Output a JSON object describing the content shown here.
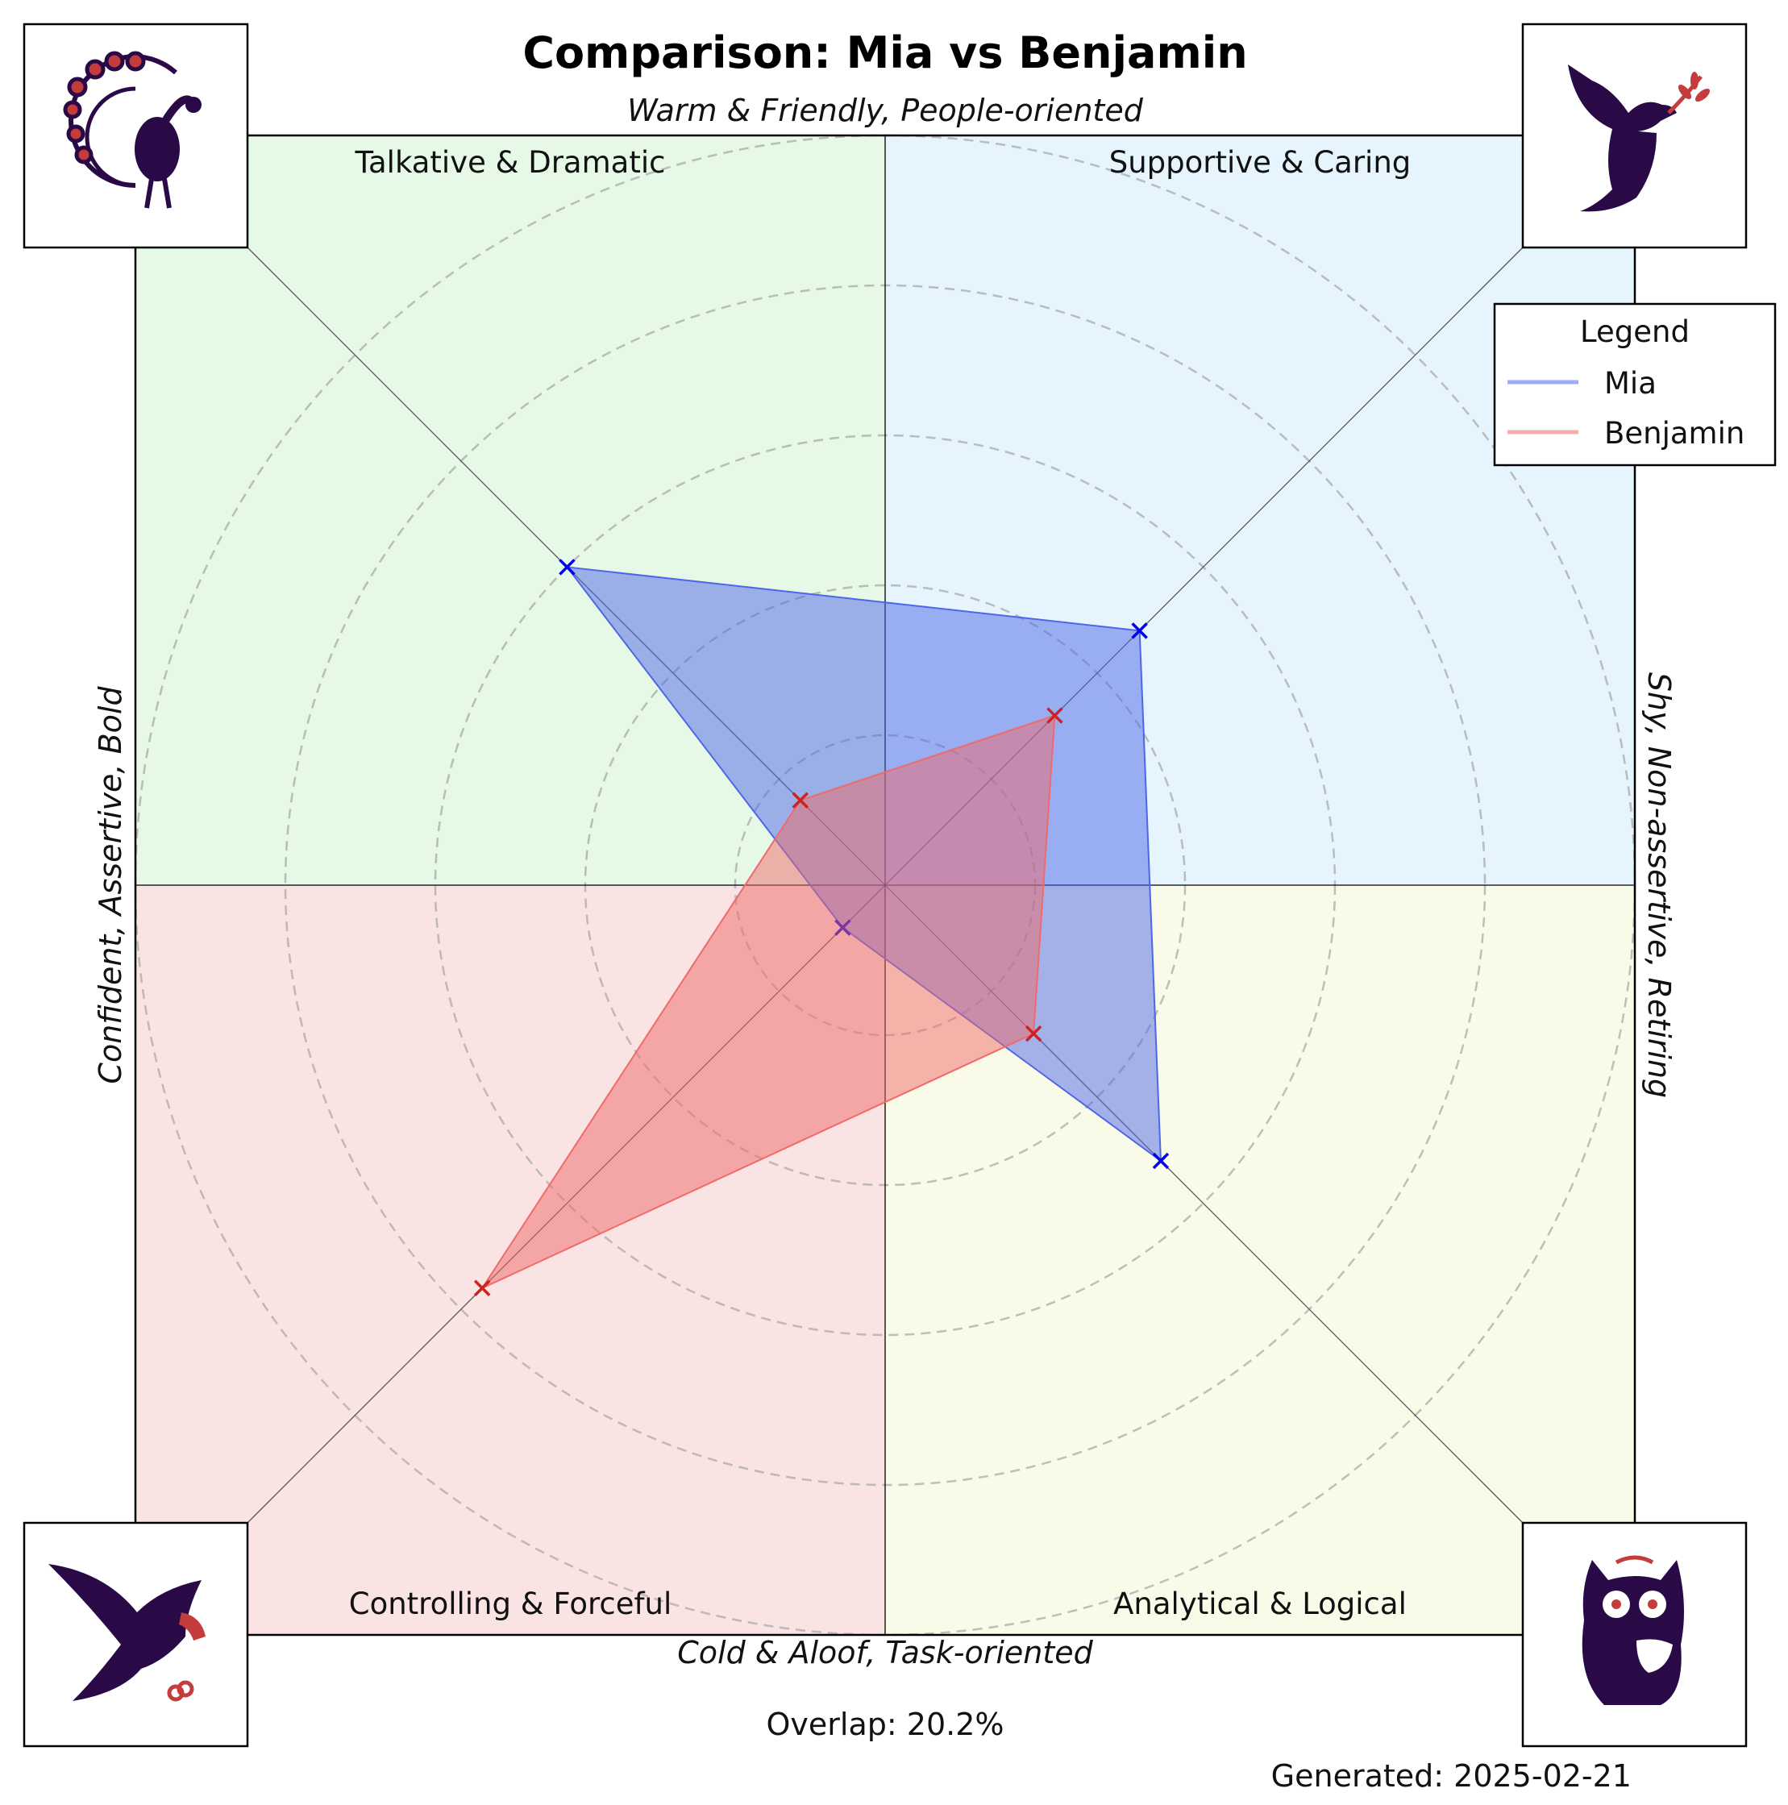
{
  "chart_data": {
    "type": "radar",
    "title": "Comparison: Mia vs Benjamin",
    "axis_labels": {
      "top": "Warm & Friendly, People-oriented",
      "bottom": "Cold & Aloof, Task-oriented",
      "left": "Confident, Assertive, Bold",
      "right": "Shy, Non-assertive, Retiring"
    },
    "quadrants": [
      {
        "name": "Talkative & Dramatic",
        "position": "top-left",
        "color": "#e6f8e6",
        "icon": "peacock-icon"
      },
      {
        "name": "Supportive & Caring",
        "position": "top-right",
        "color": "#e5f4fd",
        "icon": "dove-icon"
      },
      {
        "name": "Controlling & Forceful",
        "position": "bottom-left",
        "color": "#f9e3e3",
        "icon": "eagle-icon"
      },
      {
        "name": "Analytical & Logical",
        "position": "bottom-right",
        "color": "#fafae9",
        "icon": "owl-icon"
      }
    ],
    "axes": [
      "Talkative & Dramatic",
      "Supportive & Caring",
      "Analytical & Logical",
      "Controlling & Forceful"
    ],
    "rlim": [
      0,
      5
    ],
    "grid": true,
    "series": [
      {
        "name": "Mia",
        "color": "#4e66e8",
        "marker_color": "#0000ee",
        "values": [
          3.0,
          2.4,
          2.6,
          0.4
        ]
      },
      {
        "name": "Benjamin",
        "color": "#f06a6a",
        "marker_color": "#cc2222",
        "values": [
          0.8,
          1.6,
          1.4,
          3.8
        ]
      }
    ],
    "legend": {
      "title": "Legend",
      "placement": "top-right"
    },
    "overlap_text": "Overlap: 20.2%",
    "generated_text": "Generated: 2025-02-21"
  }
}
